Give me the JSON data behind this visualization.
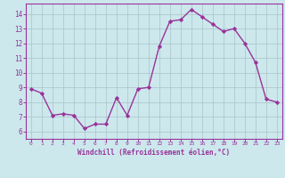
{
  "x": [
    0,
    1,
    2,
    3,
    4,
    5,
    6,
    7,
    8,
    9,
    10,
    11,
    12,
    13,
    14,
    15,
    16,
    17,
    18,
    19,
    20,
    21,
    22,
    23
  ],
  "y": [
    8.9,
    8.6,
    7.1,
    7.2,
    7.1,
    6.2,
    6.5,
    6.5,
    8.3,
    7.1,
    8.9,
    9.0,
    11.8,
    13.5,
    13.6,
    14.3,
    13.8,
    13.3,
    12.8,
    13.0,
    12.0,
    10.7,
    8.2,
    8.0
  ],
  "line_color": "#993399",
  "marker": "D",
  "markersize": 2.2,
  "linewidth": 1.0,
  "bg_color": "#cce8ed",
  "grid_color": "#b0c8cc",
  "xlabel": "Windchill (Refroidissement éolien,°C)",
  "xlim": [
    -0.5,
    23.5
  ],
  "ylim": [
    5.5,
    14.7
  ],
  "yticks": [
    6,
    7,
    8,
    9,
    10,
    11,
    12,
    13,
    14
  ],
  "xticks": [
    0,
    1,
    2,
    3,
    4,
    5,
    6,
    7,
    8,
    9,
    10,
    11,
    12,
    13,
    14,
    15,
    16,
    17,
    18,
    19,
    20,
    21,
    22,
    23
  ],
  "tick_color": "#993399",
  "label_color": "#993399",
  "spine_color": "#993399",
  "axis_bg": "#cce8ed"
}
